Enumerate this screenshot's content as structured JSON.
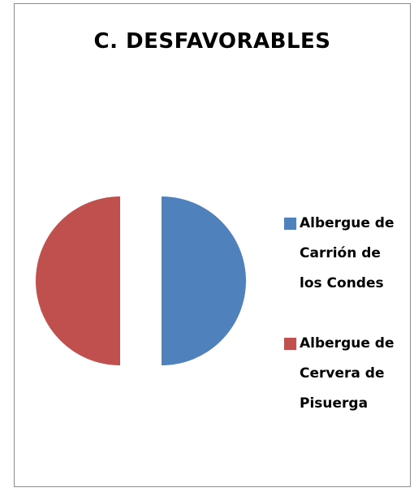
{
  "chart_data": {
    "type": "pie",
    "title": "C. DESFAVORABLES",
    "categories": [
      "Albergue de Carrión de los Condes",
      "Albergue de Cervera de Pisuerga"
    ],
    "values": [
      50,
      50
    ],
    "colors": [
      "#4f81bd",
      "#c0504d"
    ],
    "legend": "right"
  }
}
